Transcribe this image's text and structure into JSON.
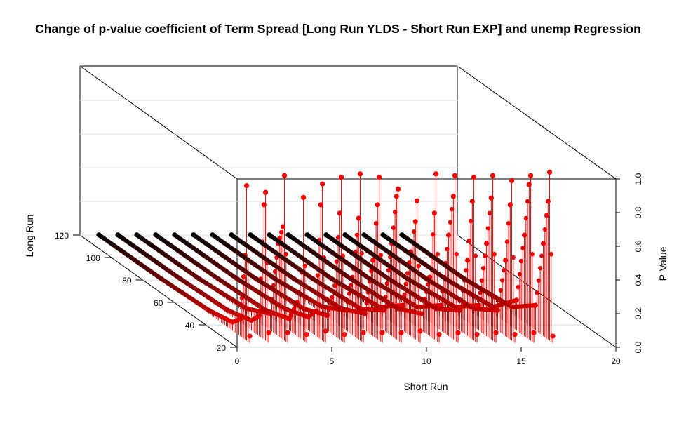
{
  "chart_data": {
    "type": "scatter3d",
    "title": "Change of p-value coefficient of Term Spread [Long Run YLDS - Short Run EXP] and unemp Regression",
    "xlabel": "Short Run",
    "ylabel": "Long Run",
    "zlabel": "P-Value",
    "xlim": [
      0,
      20
    ],
    "ylim": [
      20,
      120
    ],
    "zlim": [
      0,
      1
    ],
    "x_ticks": [
      "0",
      "5",
      "10",
      "15",
      "20"
    ],
    "y_ticks": [
      "20",
      "40",
      "60",
      "80",
      "100",
      "120"
    ],
    "z_ticks": [
      "0.0",
      "0.2",
      "0.4",
      "0.6",
      "0.8",
      "1.0"
    ],
    "grid": true,
    "point_style": "vertical drop lines",
    "color_scale": [
      "#000000",
      "#ff0000"
    ],
    "short_run_values": [
      1,
      2,
      3,
      4,
      5,
      6,
      7,
      8,
      9,
      10,
      11,
      12,
      13,
      14,
      15,
      16,
      17
    ],
    "long_run_range": [
      24,
      120
    ],
    "series": [
      {
        "short_run": 1,
        "values": [
          {
            "long_run": 24,
            "p_value": 0.04
          },
          {
            "long_run": 26,
            "p_value": 0.92
          },
          {
            "long_run": 27,
            "p_value": 0.5
          },
          {
            "long_run": 30,
            "p_value": 0.1
          },
          {
            "long_run": 35,
            "p_value": 0.05
          },
          {
            "long_run": 50,
            "p_value": 0.02
          },
          {
            "long_run": 80,
            "p_value": 0.005
          },
          {
            "long_run": 120,
            "p_value": 0.001
          }
        ]
      },
      {
        "short_run": 2,
        "values": [
          {
            "long_run": 24,
            "p_value": 0.06
          },
          {
            "long_run": 26,
            "p_value": 0.88
          },
          {
            "long_run": 27,
            "p_value": 0.8
          },
          {
            "long_run": 30,
            "p_value": 0.12
          },
          {
            "long_run": 35,
            "p_value": 0.06
          },
          {
            "long_run": 50,
            "p_value": 0.02
          },
          {
            "long_run": 80,
            "p_value": 0.005
          },
          {
            "long_run": 120,
            "p_value": 0.001
          }
        ]
      },
      {
        "short_run": 3,
        "values": [
          {
            "long_run": 24,
            "p_value": 0.06
          },
          {
            "long_run": 26,
            "p_value": 0.98
          },
          {
            "long_run": 27,
            "p_value": 0.67
          },
          {
            "long_run": 30,
            "p_value": 0.55
          },
          {
            "long_run": 35,
            "p_value": 0.1
          },
          {
            "long_run": 50,
            "p_value": 0.03
          },
          {
            "long_run": 80,
            "p_value": 0.005
          },
          {
            "long_run": 120,
            "p_value": 0.001
          }
        ]
      },
      {
        "short_run": 4,
        "values": [
          {
            "long_run": 24,
            "p_value": 0.05
          },
          {
            "long_run": 26,
            "p_value": 0.85
          },
          {
            "long_run": 27,
            "p_value": 0.4
          },
          {
            "long_run": 30,
            "p_value": 0.2
          },
          {
            "long_run": 35,
            "p_value": 0.07
          },
          {
            "long_run": 50,
            "p_value": 0.02
          },
          {
            "long_run": 80,
            "p_value": 0.005
          },
          {
            "long_run": 120,
            "p_value": 0.001
          }
        ]
      },
      {
        "short_run": 5,
        "values": [
          {
            "long_run": 24,
            "p_value": 0.07
          },
          {
            "long_run": 26,
            "p_value": 0.93
          },
          {
            "long_run": 27,
            "p_value": 0.8
          },
          {
            "long_run": 30,
            "p_value": 0.15
          },
          {
            "long_run": 35,
            "p_value": 0.08
          },
          {
            "long_run": 50,
            "p_value": 0.03
          },
          {
            "long_run": 80,
            "p_value": 0.005
          },
          {
            "long_run": 120,
            "p_value": 0.001
          }
        ]
      },
      {
        "short_run": 6,
        "values": [
          {
            "long_run": 24,
            "p_value": 0.05
          },
          {
            "long_run": 26,
            "p_value": 0.97
          },
          {
            "long_run": 27,
            "p_value": 0.75
          },
          {
            "long_run": 30,
            "p_value": 0.3
          },
          {
            "long_run": 35,
            "p_value": 0.09
          },
          {
            "long_run": 50,
            "p_value": 0.03
          },
          {
            "long_run": 80,
            "p_value": 0.005
          },
          {
            "long_run": 120,
            "p_value": 0.001
          }
        ]
      },
      {
        "short_run": 7,
        "values": [
          {
            "long_run": 24,
            "p_value": 0.06
          },
          {
            "long_run": 26,
            "p_value": 0.99
          },
          {
            "long_run": 27,
            "p_value": 0.72
          },
          {
            "long_run": 30,
            "p_value": 0.4
          },
          {
            "long_run": 35,
            "p_value": 0.12
          },
          {
            "long_run": 50,
            "p_value": 0.04
          },
          {
            "long_run": 80,
            "p_value": 0.005
          },
          {
            "long_run": 120,
            "p_value": 0.001
          }
        ]
      },
      {
        "short_run": 8,
        "values": [
          {
            "long_run": 24,
            "p_value": 0.06
          },
          {
            "long_run": 26,
            "p_value": 0.97
          },
          {
            "long_run": 27,
            "p_value": 0.8
          },
          {
            "long_run": 30,
            "p_value": 0.45
          },
          {
            "long_run": 35,
            "p_value": 0.1
          },
          {
            "long_run": 50,
            "p_value": 0.03
          },
          {
            "long_run": 80,
            "p_value": 0.005
          },
          {
            "long_run": 120,
            "p_value": 0.001
          }
        ]
      },
      {
        "short_run": 9,
        "values": [
          {
            "long_run": 24,
            "p_value": 0.06
          },
          {
            "long_run": 26,
            "p_value": 0.9
          },
          {
            "long_run": 27,
            "p_value": 0.85
          },
          {
            "long_run": 30,
            "p_value": 0.55
          },
          {
            "long_run": 35,
            "p_value": 0.12
          },
          {
            "long_run": 50,
            "p_value": 0.03
          },
          {
            "long_run": 80,
            "p_value": 0.005
          },
          {
            "long_run": 120,
            "p_value": 0.001
          }
        ]
      },
      {
        "short_run": 10,
        "values": [
          {
            "long_run": 24,
            "p_value": 0.07
          },
          {
            "long_run": 26,
            "p_value": 0.83
          },
          {
            "long_run": 27,
            "p_value": 0.7
          },
          {
            "long_run": 30,
            "p_value": 0.5
          },
          {
            "long_run": 35,
            "p_value": 0.15
          },
          {
            "long_run": 50,
            "p_value": 0.04
          },
          {
            "long_run": 80,
            "p_value": 0.005
          },
          {
            "long_run": 120,
            "p_value": 0.001
          }
        ]
      },
      {
        "short_run": 11,
        "values": [
          {
            "long_run": 24,
            "p_value": 0.05
          },
          {
            "long_run": 26,
            "p_value": 0.99
          },
          {
            "long_run": 27,
            "p_value": 0.75
          },
          {
            "long_run": 30,
            "p_value": 0.35
          },
          {
            "long_run": 35,
            "p_value": 0.1
          },
          {
            "long_run": 50,
            "p_value": 0.03
          },
          {
            "long_run": 80,
            "p_value": 0.005
          },
          {
            "long_run": 120,
            "p_value": 0.001
          }
        ]
      },
      {
        "short_run": 12,
        "values": [
          {
            "long_run": 24,
            "p_value": 0.06
          },
          {
            "long_run": 26,
            "p_value": 0.98
          },
          {
            "long_run": 27,
            "p_value": 0.85
          },
          {
            "long_run": 30,
            "p_value": 0.6
          },
          {
            "long_run": 35,
            "p_value": 0.15
          },
          {
            "long_run": 50,
            "p_value": 0.04
          },
          {
            "long_run": 80,
            "p_value": 0.005
          },
          {
            "long_run": 120,
            "p_value": 0.001
          }
        ]
      },
      {
        "short_run": 13,
        "values": [
          {
            "long_run": 24,
            "p_value": 0.05
          },
          {
            "long_run": 26,
            "p_value": 0.97
          },
          {
            "long_run": 27,
            "p_value": 0.82
          },
          {
            "long_run": 30,
            "p_value": 0.45
          },
          {
            "long_run": 35,
            "p_value": 0.12
          },
          {
            "long_run": 50,
            "p_value": 0.03
          },
          {
            "long_run": 80,
            "p_value": 0.005
          },
          {
            "long_run": 120,
            "p_value": 0.001
          }
        ]
      },
      {
        "short_run": 14,
        "values": [
          {
            "long_run": 24,
            "p_value": 0.06
          },
          {
            "long_run": 26,
            "p_value": 0.98
          },
          {
            "long_run": 27,
            "p_value": 0.84
          },
          {
            "long_run": 30,
            "p_value": 0.55
          },
          {
            "long_run": 35,
            "p_value": 0.15
          },
          {
            "long_run": 50,
            "p_value": 0.04
          },
          {
            "long_run": 80,
            "p_value": 0.005
          },
          {
            "long_run": 120,
            "p_value": 0.001
          }
        ]
      },
      {
        "short_run": 15,
        "values": [
          {
            "long_run": 24,
            "p_value": 0.05
          },
          {
            "long_run": 26,
            "p_value": 0.95
          },
          {
            "long_run": 27,
            "p_value": 0.8
          },
          {
            "long_run": 30,
            "p_value": 0.45
          },
          {
            "long_run": 35,
            "p_value": 0.12
          },
          {
            "long_run": 50,
            "p_value": 0.03
          },
          {
            "long_run": 80,
            "p_value": 0.005
          },
          {
            "long_run": 120,
            "p_value": 0.001
          }
        ]
      },
      {
        "short_run": 16,
        "values": [
          {
            "long_run": 24,
            "p_value": 0.06
          },
          {
            "long_run": 26,
            "p_value": 0.98
          },
          {
            "long_run": 27,
            "p_value": 0.92
          },
          {
            "long_run": 30,
            "p_value": 0.6
          },
          {
            "long_run": 35,
            "p_value": 0.18
          },
          {
            "long_run": 50,
            "p_value": 0.04
          },
          {
            "long_run": 80,
            "p_value": 0.005
          },
          {
            "long_run": 120,
            "p_value": 0.001
          }
        ]
      },
      {
        "short_run": 17,
        "values": [
          {
            "long_run": 24,
            "p_value": 0.04
          },
          {
            "long_run": 26,
            "p_value": 1.0
          },
          {
            "long_run": 27,
            "p_value": 0.82
          },
          {
            "long_run": 30,
            "p_value": 0.55
          },
          {
            "long_run": 35,
            "p_value": 0.15
          },
          {
            "long_run": 50,
            "p_value": 0.04
          },
          {
            "long_run": 80,
            "p_value": 0.005
          },
          {
            "long_run": 120,
            "p_value": 0.001
          }
        ]
      }
    ]
  }
}
